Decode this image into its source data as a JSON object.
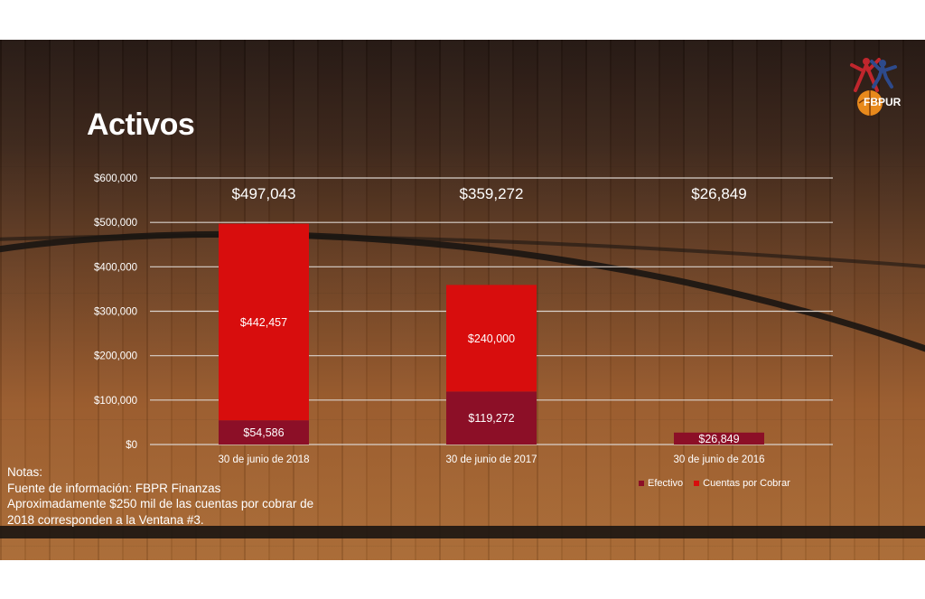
{
  "title": "Activos",
  "logo": {
    "text": "FBPUR"
  },
  "notes": {
    "heading": "Notas:",
    "line1": "Fuente de información: FBPR Finanzas",
    "line2": "Aproximadamente $250 mil de las cuentas por cobrar de",
    "line3": "2018 corresponden a la Ventana #3."
  },
  "legend": {
    "efectivo": "Efectivo",
    "cuentas": "Cuentas por Cobrar"
  },
  "colors": {
    "efectivo": "#8c0f27",
    "cuentas": "#d80d0d"
  },
  "chart_data": {
    "type": "bar",
    "stacked": true,
    "categories": [
      "30 de junio de 2018",
      "30 de junio de 2017",
      "30 de junio de 2016"
    ],
    "series": [
      {
        "name": "Efectivo",
        "values": [
          54586,
          119272,
          26849
        ],
        "labels": [
          "$54,586",
          "$119,272",
          "$26,849"
        ]
      },
      {
        "name": "Cuentas por Cobrar",
        "values": [
          442457,
          240000,
          0
        ],
        "labels": [
          "$442,457",
          "$240,000",
          ""
        ]
      }
    ],
    "totals": [
      "$497,043",
      "$359,272",
      "$26,849"
    ],
    "ylim": [
      0,
      600000
    ],
    "yticks": [
      "$0",
      "$100,000",
      "$200,000",
      "$300,000",
      "$400,000",
      "$500,000",
      "$600,000"
    ],
    "grid": true,
    "legend_position": "bottom-right"
  }
}
